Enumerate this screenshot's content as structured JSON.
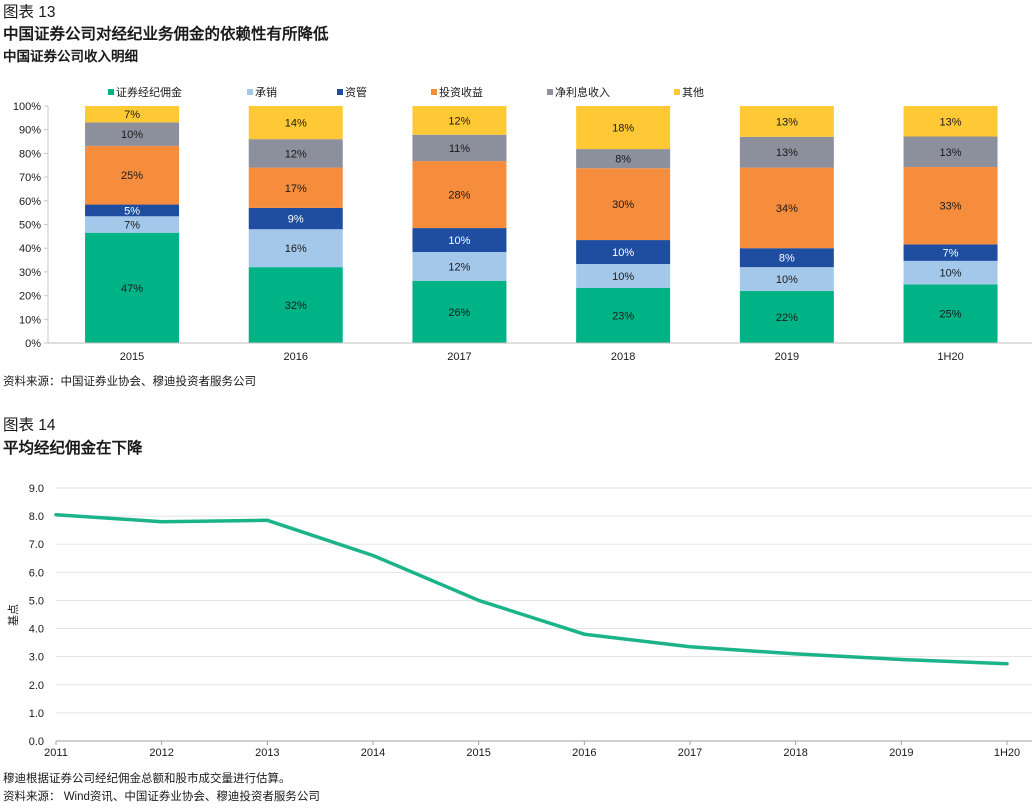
{
  "chart_data": [
    {
      "type": "bar",
      "stacked": true,
      "figure_label": "图表 13",
      "title": "中国证券公司对经纪业务佣金的依赖性有所降低",
      "subtitle": "中国证券公司收入明细",
      "source": "资料来源：中国证券业协会、穆迪投资者服务公司",
      "categories": [
        "2015",
        "2016",
        "2017",
        "2018",
        "2019",
        "1H20"
      ],
      "ylim": [
        0,
        100
      ],
      "y_ticks": [
        0,
        10,
        20,
        30,
        40,
        50,
        60,
        70,
        80,
        90,
        100
      ],
      "y_tick_labels": [
        "0%",
        "10%",
        "20%",
        "30%",
        "40%",
        "50%",
        "60%",
        "70%",
        "80%",
        "90%",
        "100%"
      ],
      "grid": false,
      "legend": "top",
      "series": [
        {
          "name": "证券经纪佣金",
          "color": "#00B386",
          "label_color": "#1A1A1A",
          "values": [
            47,
            32,
            26,
            23,
            22,
            25
          ],
          "labels": [
            "47%",
            "32%",
            "26%",
            "23%",
            "22%",
            "25%"
          ]
        },
        {
          "name": "承销",
          "color": "#A4C8EA",
          "label_color": "#1A1A1A",
          "values": [
            7,
            16,
            12,
            10,
            10,
            10
          ],
          "labels": [
            "7%",
            "16%",
            "12%",
            "10%",
            "10%",
            "10%"
          ]
        },
        {
          "name": "资管",
          "color": "#1F4EA1",
          "label_color": "#FFFFFF",
          "values": [
            5,
            9,
            10,
            10,
            8,
            7
          ],
          "labels": [
            "5%",
            "9%",
            "10%",
            "10%",
            "8%",
            "7%"
          ]
        },
        {
          "name": "投资收益",
          "color": "#F68D3D",
          "label_color": "#1A1A1A",
          "values": [
            25,
            17,
            28,
            30,
            34,
            33
          ],
          "labels": [
            "25%",
            "17%",
            "28%",
            "30%",
            "34%",
            "33%"
          ]
        },
        {
          "name": "净利息收入",
          "color": "#8C909D",
          "label_color": "#1A1A1A",
          "values": [
            10,
            12,
            11,
            8,
            13,
            13
          ],
          "labels": [
            "10%",
            "12%",
            "11%",
            "8%",
            "13%",
            "13%"
          ]
        },
        {
          "name": "其他",
          "color": "#FFC935",
          "label_color": "#1A1A1A",
          "values": [
            7,
            14,
            12,
            18,
            13,
            13
          ],
          "labels": [
            "7%",
            "14%",
            "12%",
            "18%",
            "13%",
            "13%"
          ]
        }
      ]
    },
    {
      "type": "line",
      "figure_label": "图表 14",
      "title": "平均经纪佣金在下降",
      "note": "穆迪根据证券公司经纪佣金总额和股市成交量进行估算。",
      "source": "资料来源： Wind资讯、中国证券业协会、穆迪投资者服务公司",
      "categories": [
        "2011",
        "2012",
        "2013",
        "2014",
        "2015",
        "2016",
        "2017",
        "2018",
        "2019",
        "1H20"
      ],
      "ylabel": "基点",
      "ylim": [
        0,
        9
      ],
      "y_ticks": [
        0,
        1,
        2,
        3,
        4,
        5,
        6,
        7,
        8,
        9
      ],
      "y_tick_labels": [
        "0.0",
        "1.0",
        "2.0",
        "3.0",
        "4.0",
        "5.0",
        "6.0",
        "7.0",
        "8.0",
        "9.0"
      ],
      "grid": true,
      "series": [
        {
          "color": "#1BB38A",
          "values": [
            8.05,
            7.8,
            7.85,
            6.6,
            5.0,
            3.8,
            3.35,
            3.1,
            2.9,
            2.75
          ]
        }
      ]
    }
  ]
}
